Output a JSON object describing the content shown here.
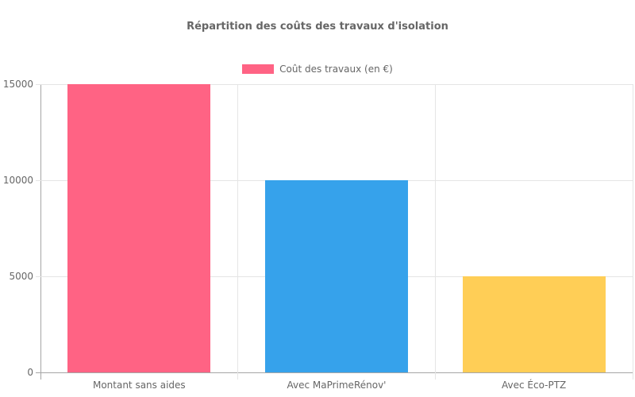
{
  "chart_data": {
    "type": "bar",
    "title": "Répartition des coûts des travaux d'isolation",
    "categories": [
      "Montant sans aides",
      "Avec MaPrimeRénov'",
      "Avec Éco-PTZ"
    ],
    "series": [
      {
        "name": "Coût des travaux (en €)",
        "values": [
          15000,
          10000,
          5000
        ],
        "colors": [
          "#FF6384",
          "#36A2EB",
          "#FFCE56"
        ]
      }
    ],
    "xlabel": "",
    "ylabel": "",
    "ylim": [
      0,
      15000
    ],
    "yticks": [
      0,
      5000,
      10000,
      15000
    ],
    "grid": true,
    "legend_position": "top",
    "legend_swatch_color": "#FF6384"
  },
  "colors": {
    "axis_line": "#a6a6a6",
    "grid_line": "#e5e5e5",
    "text": "#666666",
    "background": "#ffffff"
  }
}
